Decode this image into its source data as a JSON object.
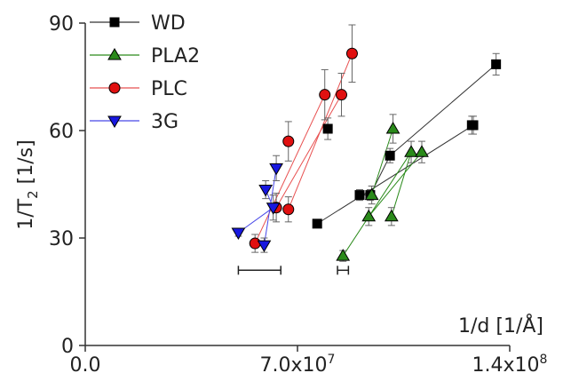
{
  "chart_data": {
    "type": "scatter",
    "title": "",
    "xlabel": "1/d [1/Å]",
    "ylabel_main": "1/T",
    "ylabel_sub": "2",
    "ylabel_unit": "[1/s]",
    "xlim": [
      0,
      140000000
    ],
    "ylim": [
      0,
      90
    ],
    "x_ticks": [
      {
        "value": 0,
        "label": "0.0"
      },
      {
        "value": 70000000,
        "label": "7.0x10"
      },
      {
        "value": 140000000,
        "label": "1.4x10"
      }
    ],
    "x_tick_exponents": [
      "",
      "7",
      "8"
    ],
    "y_ticks": [
      {
        "value": 0,
        "label": "0"
      },
      {
        "value": 30,
        "label": "30"
      },
      {
        "value": 60,
        "label": "60"
      },
      {
        "value": 90,
        "label": "90"
      }
    ],
    "legend_position": "top-left",
    "grid": false,
    "series": [
      {
        "name": "WD",
        "marker": "square",
        "color": "#000000",
        "line_color": "#333333",
        "points": [
          {
            "x": 76500000,
            "y": 34,
            "err": 1
          },
          {
            "x": 90500000,
            "y": 42,
            "err": 1.5
          },
          {
            "x": 94000000,
            "y": 42,
            "err": 1.5
          },
          {
            "x": 100500000,
            "y": 53,
            "err": 2
          },
          {
            "x": 128000000,
            "y": 61.5,
            "err": 2.5
          },
          {
            "x": 135500000,
            "y": 78.5,
            "err": 3
          },
          {
            "x": 80000000,
            "y": 60.5,
            "err": 3
          },
          {
            "x": 127500000,
            "y": 61.5,
            "err": 2.5
          }
        ],
        "segments": [
          [
            0,
            4
          ],
          [
            1,
            2
          ],
          [
            2,
            3
          ],
          [
            3,
            5
          ]
        ]
      },
      {
        "name": "PLA2",
        "marker": "triangle-up",
        "color": "#2a8a1a",
        "line_color": "#2a8a1a",
        "points": [
          {
            "x": 85000000,
            "y": 25,
            "err": 1.5
          },
          {
            "x": 93500000,
            "y": 36,
            "err": 2.5
          },
          {
            "x": 94500000,
            "y": 42,
            "err": 2.5
          },
          {
            "x": 101000000,
            "y": 36,
            "err": 2.5
          },
          {
            "x": 101500000,
            "y": 60.5,
            "err": 4
          },
          {
            "x": 107500000,
            "y": 54,
            "err": 3
          },
          {
            "x": 111000000,
            "y": 54,
            "err": 3
          }
        ],
        "segments": [
          [
            0,
            5
          ],
          [
            1,
            6
          ],
          [
            2,
            4
          ],
          [
            3,
            5
          ]
        ]
      },
      {
        "name": "PLC",
        "marker": "circle",
        "color": "#e01010",
        "line_color": "#e85050",
        "points": [
          {
            "x": 56000000,
            "y": 28.5,
            "err": 2.5
          },
          {
            "x": 63000000,
            "y": 38.5,
            "err": 4
          },
          {
            "x": 67000000,
            "y": 38,
            "err": 3.5
          },
          {
            "x": 67000000,
            "y": 57,
            "err": 5.5
          },
          {
            "x": 79000000,
            "y": 70,
            "err": 7
          },
          {
            "x": 84500000,
            "y": 70,
            "err": 6
          },
          {
            "x": 88000000,
            "y": 81.5,
            "err": 8
          }
        ],
        "segments": [
          [
            0,
            4
          ],
          [
            1,
            5
          ],
          [
            2,
            6
          ]
        ]
      },
      {
        "name": "3G",
        "marker": "triangle-down",
        "color": "#1818e0",
        "line_color": "#4848e8",
        "points": [
          {
            "x": 50500000,
            "y": 31.5,
            "err": 1
          },
          {
            "x": 59000000,
            "y": 28,
            "err": 2
          },
          {
            "x": 59500000,
            "y": 43.5,
            "err": 2.5
          },
          {
            "x": 62000000,
            "y": 38.5,
            "err": 3.5
          },
          {
            "x": 63000000,
            "y": 49.5,
            "err": 3.5
          }
        ],
        "segments": [
          [
            0,
            3
          ],
          [
            1,
            4
          ],
          [
            2,
            3
          ]
        ]
      }
    ],
    "error_bars_standalone": [
      {
        "x": 57500000,
        "x_err": 7000000,
        "y": 21,
        "color": "#222222"
      },
      {
        "x": 85000000,
        "x_err": 1800000,
        "y": 21,
        "color": "#222222"
      }
    ]
  }
}
